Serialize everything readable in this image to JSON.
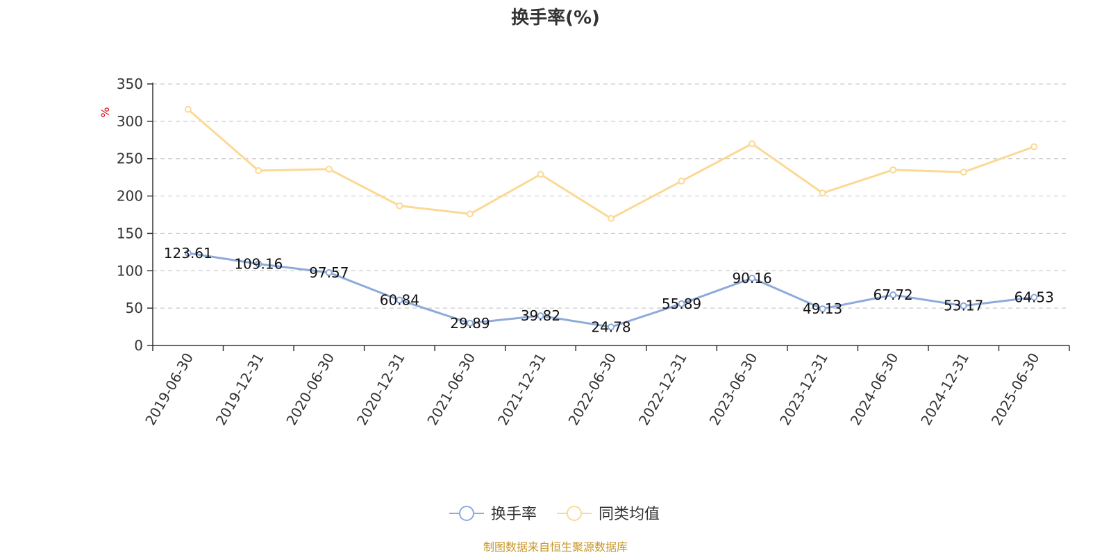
{
  "chart_data": {
    "type": "line",
    "title": "换手率(%)",
    "ylabel": "%",
    "xlabel": "",
    "ylim": [
      0,
      350
    ],
    "yticks": [
      0,
      50,
      100,
      150,
      200,
      250,
      300,
      350
    ],
    "grid": true,
    "legend_position": "bottom-center",
    "categories": [
      "2019-06-30",
      "2019-12-31",
      "2020-06-30",
      "2020-12-31",
      "2021-06-30",
      "2021-12-31",
      "2022-06-30",
      "2022-12-31",
      "2023-06-30",
      "2023-12-31",
      "2024-06-30",
      "2024-12-31",
      "2025-06-30"
    ],
    "series": [
      {
        "name": "换手率",
        "color": "#8eaadb",
        "values": [
          123.61,
          109.16,
          97.57,
          60.84,
          29.89,
          39.82,
          24.78,
          55.89,
          90.16,
          49.13,
          67.72,
          53.17,
          64.53
        ],
        "labels": [
          "123.61",
          "109.16",
          "97.57",
          "60.84",
          "29.89",
          "39.82",
          "24.78",
          "55.89",
          "90.16",
          "49.13",
          "67.72",
          "53.17",
          "64.53"
        ]
      },
      {
        "name": "同类均值",
        "color": "#fbd995",
        "values": [
          316,
          234,
          236,
          187,
          176,
          229,
          170,
          220,
          270,
          204,
          235,
          232,
          266
        ]
      }
    ],
    "source": "制图数据来自恒生聚源数据库"
  }
}
